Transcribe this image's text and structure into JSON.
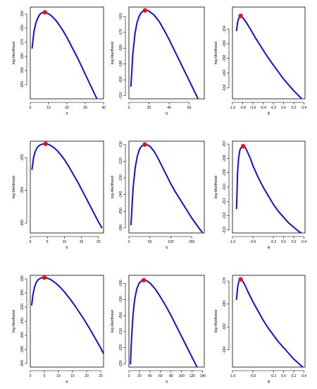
{
  "style": {
    "curve_color": "#1010e0",
    "max_point_color": "#ee1111"
  },
  "chart_data": [
    {
      "type": "line",
      "title": "",
      "xlabel": "α",
      "ylabel": "log-likelihood",
      "xlim": [
        0,
        40
      ],
      "ylim": [
        -210,
        -145
      ],
      "xticks": [
        0,
        10,
        20,
        30,
        40
      ],
      "xtick_labels": [
        "0",
        "10",
        "20",
        "30",
        "40"
      ],
      "yticks": [
        -200,
        -190,
        -180,
        -170,
        -160,
        -150
      ],
      "ytick_labels": [
        "-200",
        "-190",
        "-180",
        "-170",
        "-160",
        "-150"
      ],
      "series": [
        {
          "x": [
            1,
            2,
            3,
            4,
            5,
            6,
            7,
            8,
            10,
            12,
            14,
            16,
            18,
            20,
            22,
            24,
            26,
            28,
            30,
            32,
            34,
            36,
            38,
            40
          ],
          "y": [
            -174,
            -162.5,
            -156.5,
            -153,
            -150.5,
            -149.3,
            -148.8,
            -148.7,
            -149.7,
            -151.7,
            -154.5,
            -158,
            -162,
            -166.5,
            -171.5,
            -176.5,
            -181.5,
            -187,
            -192.5,
            -198,
            -203.5,
            -209,
            -214.5,
            -220
          ]
        }
      ],
      "max_point": {
        "x": 8,
        "y": -148.7
      }
    },
    {
      "type": "line",
      "title": "",
      "xlabel": "η",
      "ylabel": "log-likelihood",
      "xlim": [
        0,
        75
      ],
      "ylim": [
        -212,
        -154
      ],
      "xticks": [
        0,
        20,
        40,
        60
      ],
      "xtick_labels": [
        "0",
        "20",
        "40",
        "60"
      ],
      "yticks": [
        -210,
        -200,
        -190,
        -180,
        -170,
        -160
      ],
      "ytick_labels": [
        "-210",
        "-200",
        "-190",
        "-180",
        "-170",
        "-160"
      ],
      "series": [
        {
          "x": [
            2,
            4,
            6,
            8,
            10,
            12,
            14,
            16,
            18,
            20,
            25,
            30,
            35,
            40,
            45,
            50,
            55,
            60,
            65,
            70,
            74
          ],
          "y": [
            -204,
            -183,
            -171,
            -164,
            -160,
            -157.8,
            -156.6,
            -156.1,
            -156.1,
            -156.6,
            -159,
            -163,
            -168.5,
            -174.5,
            -181,
            -187.5,
            -194,
            -200.5,
            -207,
            -213.5,
            -218.5
          ]
        }
      ],
      "max_point": {
        "x": 16,
        "y": -156.1
      }
    },
    {
      "type": "line",
      "title": "",
      "xlabel": "ϕ",
      "ylabel": "log-likelihood",
      "xlim": [
        -1.0,
        0.42
      ],
      "ylim": [
        -163.5,
        -151
      ],
      "xticks": [
        -1.0,
        -0.8,
        -0.6,
        -0.4,
        -0.2,
        0.0,
        0.2,
        0.4
      ],
      "xtick_labels": [
        "-1.0",
        "-0.8",
        "-0.6",
        "-0.4",
        "-0.2",
        "0.0",
        "0.2",
        "0.4"
      ],
      "yticks": [
        -162,
        -160,
        -158,
        -156,
        -154
      ],
      "ytick_labels": [
        "-162",
        "-160",
        "-158",
        "-156",
        "-154"
      ],
      "series": [
        {
          "x": [
            -0.92,
            -0.9,
            -0.88,
            -0.86,
            -0.84,
            -0.82,
            -0.78,
            -0.72,
            -0.65,
            -0.55,
            -0.45,
            -0.35,
            -0.2,
            0.0,
            0.2,
            0.4
          ],
          "y": [
            -154.2,
            -153.1,
            -152.6,
            -152.3,
            -152.2,
            -152.3,
            -152.6,
            -153.2,
            -154,
            -155.2,
            -156.3,
            -157.4,
            -158.9,
            -160.8,
            -162.4,
            -163.8
          ]
        }
      ],
      "max_point": {
        "x": -0.84,
        "y": -152.2
      }
    },
    {
      "type": "line",
      "title": "",
      "xlabel": "α",
      "ylabel": "log-likelihood",
      "xlim": [
        0,
        21.5
      ],
      "ylim": [
        -365,
        -225
      ],
      "xticks": [
        0,
        5,
        10,
        15,
        20
      ],
      "xtick_labels": [
        "0",
        "5",
        "10",
        "15",
        "20"
      ],
      "yticks": [
        -350,
        -300,
        -250
      ],
      "ytick_labels": [
        "-350",
        "-300",
        "-250"
      ],
      "series": [
        {
          "x": [
            0.5,
            1,
            1.5,
            2,
            2.5,
            3,
            3.5,
            4,
            4.5,
            5,
            6,
            7,
            8,
            9,
            10,
            11,
            12,
            13,
            14,
            15,
            16,
            17,
            18,
            19,
            20,
            21
          ],
          "y": [
            -268,
            -249,
            -240,
            -235,
            -232,
            -230.5,
            -229.6,
            -229.1,
            -229,
            -229.3,
            -231.5,
            -235,
            -240,
            -246,
            -253,
            -261,
            -270,
            -279,
            -288,
            -298,
            -308,
            -318,
            -328,
            -338,
            -348,
            -357
          ]
        }
      ],
      "max_point": {
        "x": 4.5,
        "y": -229
      }
    },
    {
      "type": "line",
      "title": "",
      "xlabel": "η",
      "ylabel": "log-likelihood",
      "xlim": [
        0,
        180
      ],
      "ylim": [
        -263,
        -208
      ],
      "xticks": [
        0,
        50,
        100,
        150
      ],
      "xtick_labels": [
        "0",
        "50",
        "100",
        "150"
      ],
      "yticks": [
        -260,
        -250,
        -240,
        -230,
        -220,
        -210
      ],
      "ytick_labels": [
        "-260",
        "-250",
        "-240",
        "-230",
        "-220",
        "-210"
      ],
      "series": [
        {
          "x": [
            5,
            10,
            15,
            20,
            25,
            30,
            35,
            40,
            45,
            50,
            60,
            70,
            80,
            90,
            100,
            110,
            120,
            130,
            140,
            150,
            160,
            170,
            175
          ],
          "y": [
            -258,
            -236,
            -224,
            -217,
            -213,
            -211,
            -210.2,
            -210,
            -210.3,
            -211,
            -214,
            -218.5,
            -223.5,
            -228.5,
            -233.5,
            -238,
            -242,
            -246,
            -250,
            -254,
            -257.5,
            -261,
            -262.5
          ]
        }
      ],
      "max_point": {
        "x": 38,
        "y": -210
      }
    },
    {
      "type": "line",
      "title": "",
      "xlabel": "ϕ",
      "ylabel": "log-likelihood",
      "xlim": [
        -1.0,
        0.42
      ],
      "ylim": [
        -213.2,
        -206.8
      ],
      "xticks": [
        -1.0,
        -0.6,
        -0.2,
        0.0,
        0.2,
        0.4
      ],
      "xtick_labels": [
        "-1.0",
        "-0.6",
        "-0.2",
        "0.0",
        "0.2",
        "0.4"
      ],
      "yticks": [
        -213,
        -212,
        -211,
        -210,
        -209,
        -208,
        -207
      ],
      "ytick_labels": [
        "-213",
        "-212",
        "-211",
        "-210",
        "-209",
        "-208",
        "-207"
      ],
      "series": [
        {
          "x": [
            -0.92,
            -0.9,
            -0.88,
            -0.86,
            -0.84,
            -0.82,
            -0.8,
            -0.78,
            -0.76,
            -0.74,
            -0.7,
            -0.65,
            -0.6,
            -0.5,
            -0.4,
            -0.3,
            -0.2,
            -0.1,
            0.0,
            0.1,
            0.2,
            0.3,
            0.35
          ],
          "y": [
            -211.5,
            -209,
            -208,
            -207.5,
            -207.3,
            -207.2,
            -207.15,
            -207.15,
            -207.2,
            -207.3,
            -207.6,
            -208,
            -208.5,
            -209.3,
            -210,
            -210.6,
            -211.2,
            -211.7,
            -212.1,
            -212.5,
            -212.8,
            -213.1,
            -213.2
          ]
        }
      ],
      "max_point": {
        "x": -0.79,
        "y": -207.15
      }
    },
    {
      "type": "line",
      "title": "",
      "xlabel": "α",
      "ylabel": "log-likelihood",
      "xlim": [
        0,
        26
      ],
      "ylim": [
        -305,
        -175
      ],
      "xticks": [
        0,
        5,
        10,
        15,
        20,
        25
      ],
      "xtick_labels": [
        "0",
        "5",
        "10",
        "15",
        "20",
        "25"
      ],
      "yticks": [
        -300,
        -280,
        -260,
        -240,
        -220,
        -200,
        -180
      ],
      "ytick_labels": [
        "-300",
        "-280",
        "-260",
        "-240",
        "-220",
        "-200",
        "-180"
      ],
      "series": [
        {
          "x": [
            0.5,
            1,
            1.5,
            2,
            2.5,
            3,
            3.5,
            4,
            4.5,
            5,
            5.5,
            6,
            7,
            8,
            9,
            10,
            11,
            12,
            13,
            14,
            15,
            16,
            17,
            18,
            19,
            20,
            21,
            22,
            23,
            24,
            25,
            26
          ],
          "y": [
            -217,
            -201,
            -192,
            -186,
            -182.5,
            -180.5,
            -179.3,
            -178.6,
            -178.3,
            -178.2,
            -178.4,
            -178.9,
            -180.5,
            -183,
            -186,
            -189.5,
            -193.5,
            -198,
            -203,
            -208,
            -213.5,
            -219,
            -225,
            -231,
            -237,
            -243.5,
            -250,
            -257,
            -264,
            -271,
            -278,
            -286
          ]
        }
      ],
      "max_point": {
        "x": 5,
        "y": -178.2
      }
    },
    {
      "type": "line",
      "title": "",
      "xlabel": "η",
      "ylabel": "log-likelihood",
      "xlim": [
        0,
        143
      ],
      "ylim": [
        -232,
        -175
      ],
      "xticks": [
        0,
        20,
        40,
        60,
        80,
        100,
        120,
        140
      ],
      "xtick_labels": [
        "0",
        "20",
        "40",
        "60",
        "80",
        "100",
        "120",
        "140"
      ],
      "yticks": [
        -230,
        -220,
        -210,
        -200,
        -190,
        -180
      ],
      "ytick_labels": [
        "-230",
        "-220",
        "-210",
        "-200",
        "-190",
        "-180"
      ],
      "series": [
        {
          "x": [
            3,
            5,
            8,
            10,
            12,
            15,
            18,
            20,
            25,
            30,
            35,
            40,
            50,
            60,
            70,
            80,
            90,
            100,
            110,
            120,
            130,
            140
          ],
          "y": [
            -230,
            -214,
            -199,
            -192.5,
            -188,
            -183.5,
            -180.8,
            -179.6,
            -178.1,
            -178,
            -178.6,
            -179.8,
            -183.5,
            -188.5,
            -194,
            -200,
            -206.5,
            -213,
            -219.5,
            -226,
            -232.5,
            -239
          ]
        }
      ],
      "max_point": {
        "x": 28,
        "y": -178
      }
    },
    {
      "type": "line",
      "title": "",
      "xlabel": "ϕ",
      "ylabel": "log-likelihood",
      "xlim": [
        -1.0,
        0.42
      ],
      "ylim": [
        -185.5,
        -177.5
      ],
      "xticks": [
        -1.0,
        -0.6,
        -0.2,
        0.0,
        0.2,
        0.4
      ],
      "xtick_labels": [
        "-1.0",
        "-0.6",
        "-0.2",
        "0.0",
        "0.2",
        "0.4"
      ],
      "yticks": [
        -184,
        -182,
        -180,
        -178
      ],
      "ytick_labels": [
        "-184",
        "-182",
        "-180",
        "-178"
      ],
      "series": [
        {
          "x": [
            -0.92,
            -0.9,
            -0.88,
            -0.86,
            -0.84,
            -0.8,
            -0.75,
            -0.7,
            -0.6,
            -0.5,
            -0.4,
            -0.3,
            -0.2,
            -0.1,
            0.0,
            0.1,
            0.2,
            0.3,
            0.4
          ],
          "y": [
            -179.6,
            -178.6,
            -178.1,
            -177.9,
            -177.85,
            -178,
            -178.4,
            -178.9,
            -179.8,
            -180.6,
            -181.4,
            -182.1,
            -182.7,
            -183.3,
            -183.8,
            -184.3,
            -184.8,
            -185.2,
            -185.6
          ]
        }
      ],
      "max_point": {
        "x": -0.84,
        "y": -177.85
      }
    }
  ]
}
